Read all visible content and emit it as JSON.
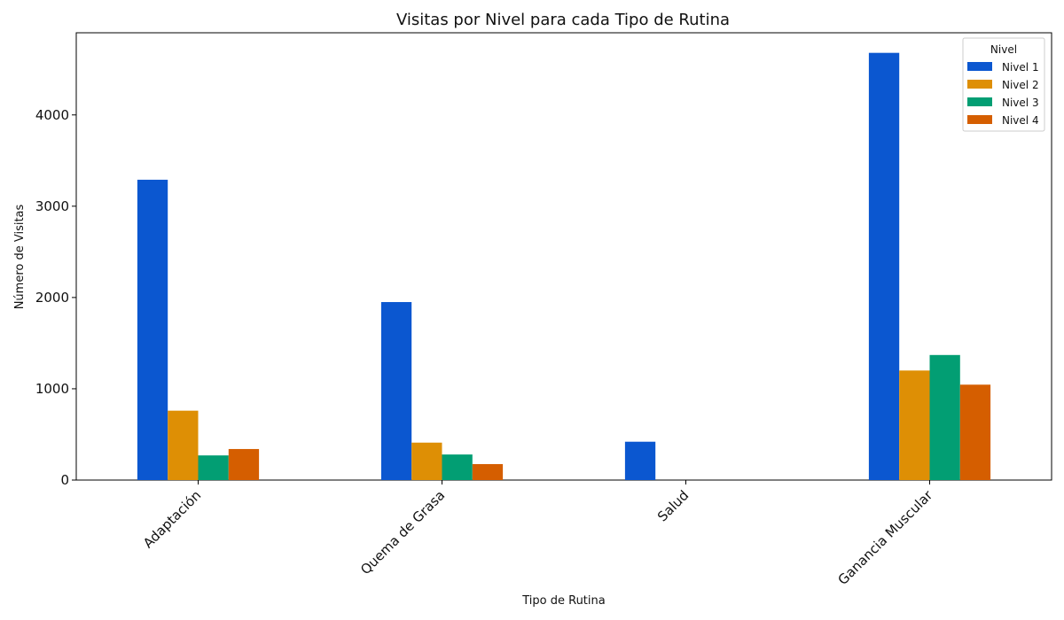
{
  "chart_data": {
    "type": "bar",
    "title": "Visitas por Nivel para cada Tipo de Rutina",
    "xlabel": "Tipo de Rutina",
    "ylabel": "Número de Visitas",
    "categories": [
      "Adaptación",
      "Quema de Grasa",
      "Salud",
      "Ganancia Muscular"
    ],
    "series": [
      {
        "name": "Nivel 1",
        "color": "#0b57d0",
        "values": [
          3290,
          1950,
          420,
          4680
        ]
      },
      {
        "name": "Nivel 2",
        "color": "#de8f05",
        "values": [
          760,
          410,
          0,
          1200
        ]
      },
      {
        "name": "Nivel 3",
        "color": "#029e73",
        "values": [
          270,
          280,
          0,
          1370
        ]
      },
      {
        "name": "Nivel 4",
        "color": "#d55e00",
        "values": [
          340,
          175,
          0,
          1045
        ]
      }
    ],
    "ylim": [
      0,
      4900
    ],
    "yticks": [
      0,
      1000,
      2000,
      3000,
      4000
    ],
    "grid": false,
    "legend": {
      "title": "Nivel",
      "position": "top-right"
    }
  }
}
